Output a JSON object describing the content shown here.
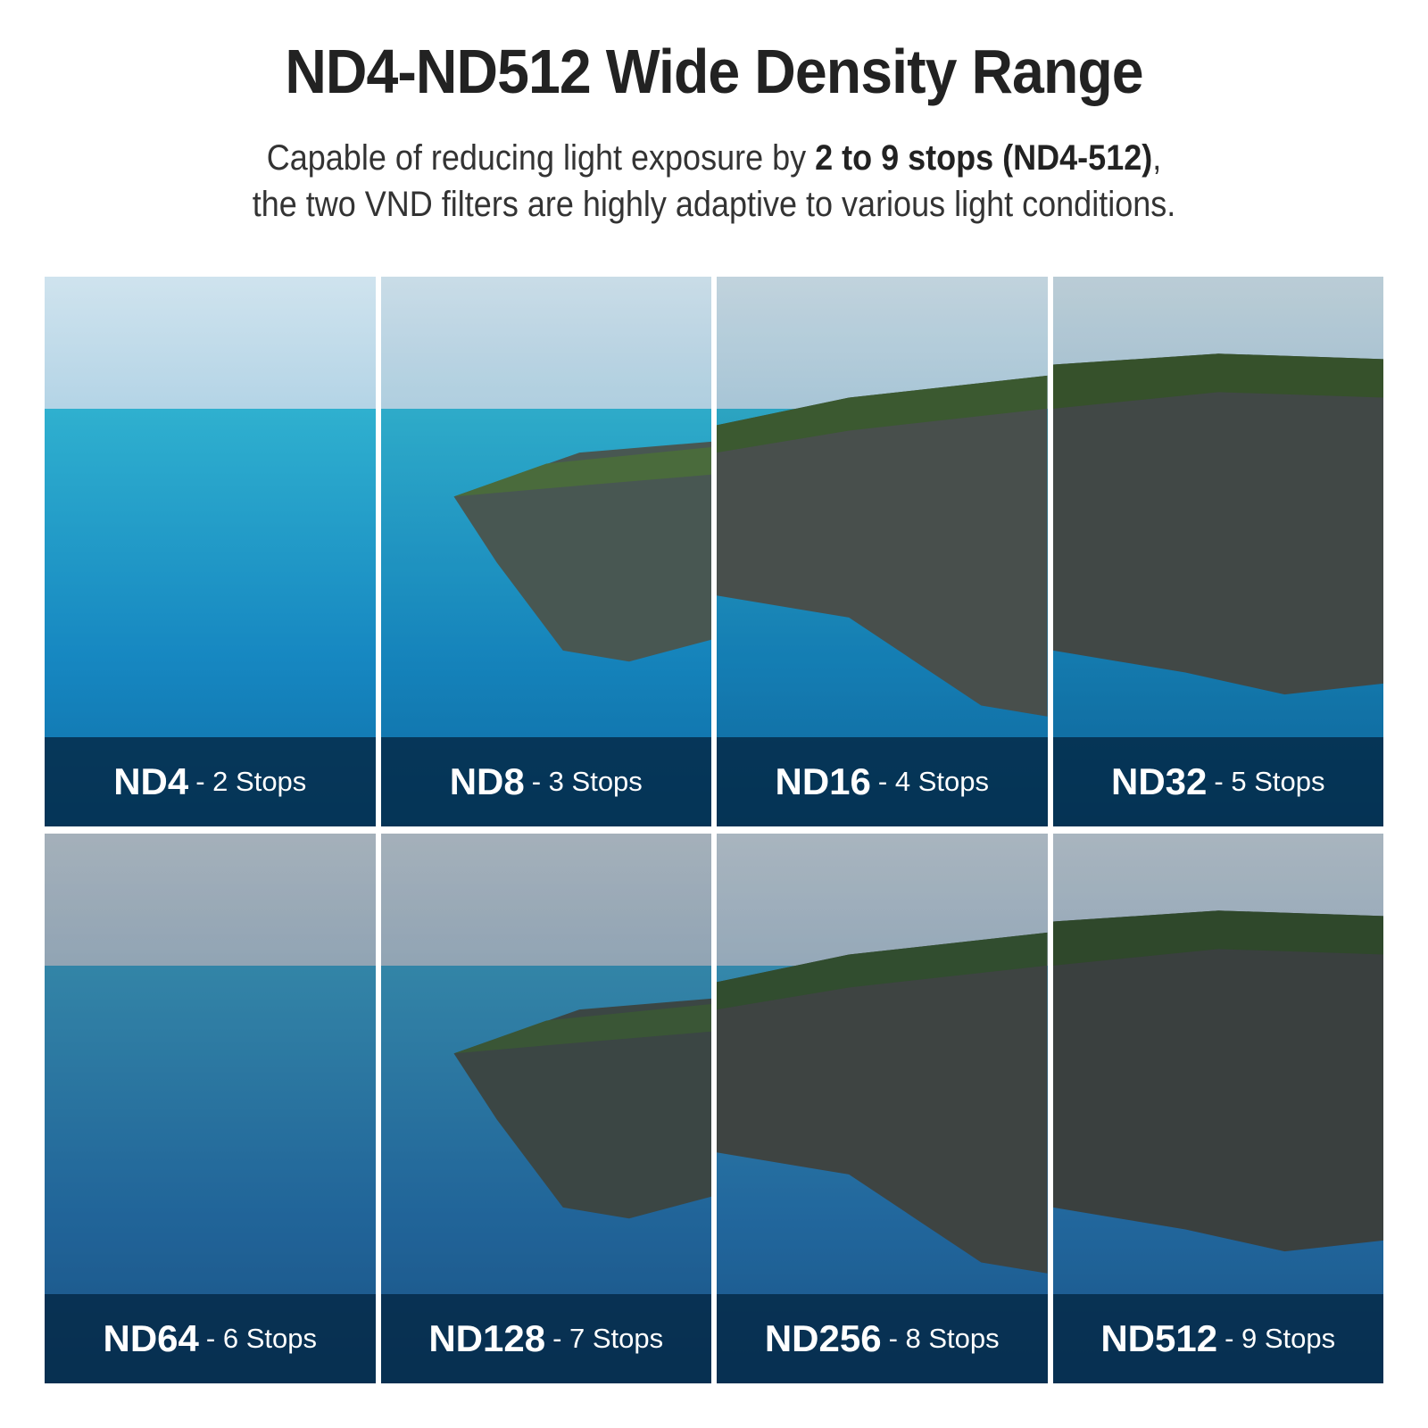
{
  "header": {
    "title": "ND4-ND512 Wide Density Range",
    "subtitle_line1_pre": "Capable of reducing light exposure by ",
    "subtitle_line1_bold": "2 to 9 stops (ND4-512)",
    "subtitle_line1_post": ",",
    "subtitle_line2": "the two VND filters are highly adaptive to various light conditions."
  },
  "panels": [
    {
      "nd": "ND4",
      "stops": "- 2 Stops",
      "scene": "open-sea",
      "brightness": 1.0
    },
    {
      "nd": "ND8",
      "stops": "- 3 Stops",
      "scene": "coast-far",
      "brightness": 0.97
    },
    {
      "nd": "ND16",
      "stops": "- 4 Stops",
      "scene": "cliffs",
      "brightness": 0.93
    },
    {
      "nd": "ND32",
      "stops": "- 5 Stops",
      "scene": "cliffs-close",
      "brightness": 0.9
    },
    {
      "nd": "ND64",
      "stops": "- 6 Stops",
      "scene": "open-sea",
      "brightness": 0.78
    },
    {
      "nd": "ND128",
      "stops": "- 7 Stops",
      "scene": "coast-far",
      "brightness": 0.78
    },
    {
      "nd": "ND256",
      "stops": "- 8 Stops",
      "scene": "cliffs",
      "brightness": 0.8
    },
    {
      "nd": "ND512",
      "stops": "- 9 Stops",
      "scene": "cliffs-close",
      "brightness": 0.8
    }
  ]
}
